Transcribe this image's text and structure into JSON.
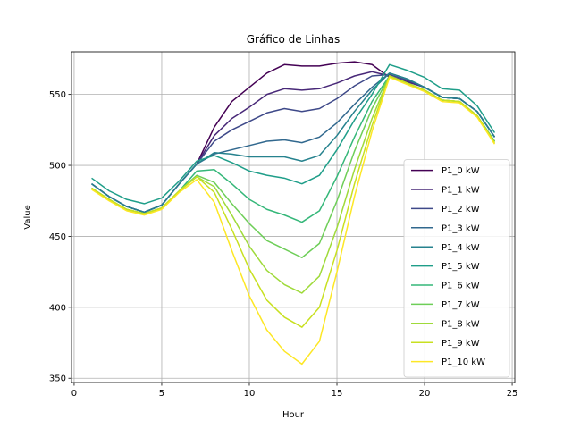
{
  "chart_data": {
    "type": "line",
    "title": "Gráfico de Linhas",
    "xlabel": "Hour",
    "ylabel": "Value",
    "xlim": [
      -0.15,
      25.15
    ],
    "ylim": [
      347,
      580
    ],
    "x_ticks": [
      0,
      5,
      10,
      15,
      20,
      25
    ],
    "y_ticks": [
      350,
      400,
      450,
      500,
      550
    ],
    "grid": true,
    "legend_position": "lower right",
    "x": [
      1,
      2,
      3,
      4,
      5,
      6,
      7,
      8,
      9,
      10,
      11,
      12,
      13,
      14,
      15,
      16,
      17,
      18,
      19,
      20,
      21,
      22,
      23,
      24
    ],
    "series": [
      {
        "name": "P1_0 kW",
        "color": "#440154",
        "values": [
          487,
          478,
          471,
          467,
          472,
          487,
          501,
          527,
          545,
          555,
          565,
          571,
          570,
          570,
          572,
          573,
          571,
          562,
          559,
          555,
          548,
          547,
          538,
          520
        ]
      },
      {
        "name": "P1_1 kW",
        "color": "#482878",
        "values": [
          487,
          478,
          471,
          467,
          472,
          487,
          501,
          521,
          533,
          541,
          550,
          554,
          553,
          554,
          558,
          563,
          566,
          563,
          559,
          555,
          548,
          547,
          538,
          520
        ]
      },
      {
        "name": "P1_2 kW",
        "color": "#3e4989",
        "values": [
          487,
          478,
          471,
          467,
          472,
          487,
          501,
          517,
          525,
          531,
          537,
          540,
          538,
          540,
          547,
          556,
          563,
          564,
          560,
          555,
          548,
          547,
          538,
          520
        ]
      },
      {
        "name": "P1_3 kW",
        "color": "#31688e",
        "values": [
          487,
          478,
          471,
          467,
          472,
          487,
          501,
          508,
          511,
          514,
          517,
          518,
          516,
          520,
          530,
          543,
          555,
          565,
          561,
          555,
          548,
          547,
          538,
          520
        ]
      },
      {
        "name": "P1_4 kW",
        "color": "#26828e",
        "values": [
          487,
          478,
          471,
          467,
          472,
          487,
          501,
          509,
          508,
          506,
          506,
          506,
          503,
          507,
          521,
          538,
          553,
          565,
          561,
          555,
          548,
          547,
          538,
          520
        ]
      },
      {
        "name": "P1_5 kW",
        "color": "#1f9e89",
        "values": [
          491,
          482,
          476,
          473,
          477,
          489,
          503,
          507,
          502,
          496,
          493,
          491,
          487,
          493,
          511,
          532,
          550,
          571,
          567,
          562,
          554,
          553,
          542,
          523
        ]
      },
      {
        "name": "P1_6 kW",
        "color": "#35b779",
        "values": [
          484,
          476,
          469,
          466,
          470,
          482,
          496,
          497,
          487,
          476,
          469,
          465,
          460,
          468,
          492,
          520,
          545,
          563,
          558,
          553,
          546,
          545,
          535,
          517
        ]
      },
      {
        "name": "P1_7 kW",
        "color": "#6ece58",
        "values": [
          484,
          476,
          469,
          466,
          470,
          482,
          493,
          488,
          473,
          459,
          447,
          441,
          435,
          445,
          475,
          510,
          540,
          563,
          558,
          553,
          546,
          545,
          535,
          517
        ]
      },
      {
        "name": "P1_8 kW",
        "color": "#9fda3a",
        "values": [
          484,
          476,
          469,
          466,
          470,
          482,
          492,
          485,
          465,
          443,
          426,
          416,
          410,
          422,
          456,
          497,
          533,
          563,
          558,
          553,
          546,
          545,
          535,
          516
        ]
      },
      {
        "name": "P1_9 kW",
        "color": "#c8e020",
        "values": [
          484,
          476,
          469,
          466,
          470,
          482,
          492,
          481,
          455,
          427,
          405,
          393,
          386,
          400,
          440,
          487,
          528,
          563,
          558,
          553,
          546,
          545,
          535,
          516
        ]
      },
      {
        "name": "P1_10 kW",
        "color": "#fde725",
        "values": [
          483,
          475,
          468,
          465,
          469,
          481,
          490,
          474,
          440,
          408,
          384,
          369,
          360,
          376,
          425,
          478,
          524,
          562,
          557,
          552,
          545,
          544,
          534,
          515
        ]
      }
    ]
  }
}
